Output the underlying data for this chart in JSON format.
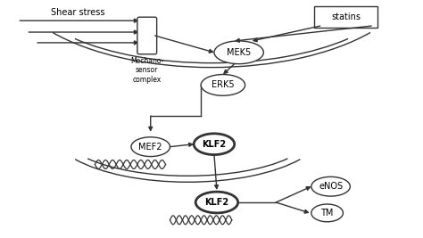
{
  "bg_color": "#ffffff",
  "line_color": "#333333",
  "shear_stress_label": "Shear stress",
  "statins_label": "statins",
  "mechano_label": "Mechano-\nsensor\ncomplex",
  "mek5_label": "MEK5",
  "erk5_label": "ERK5",
  "mef2_label": "MEF2",
  "klf2_label": "KLF2",
  "klf2b_label": "KLF2",
  "enos_label": "eNOS",
  "tm_label": "TM"
}
